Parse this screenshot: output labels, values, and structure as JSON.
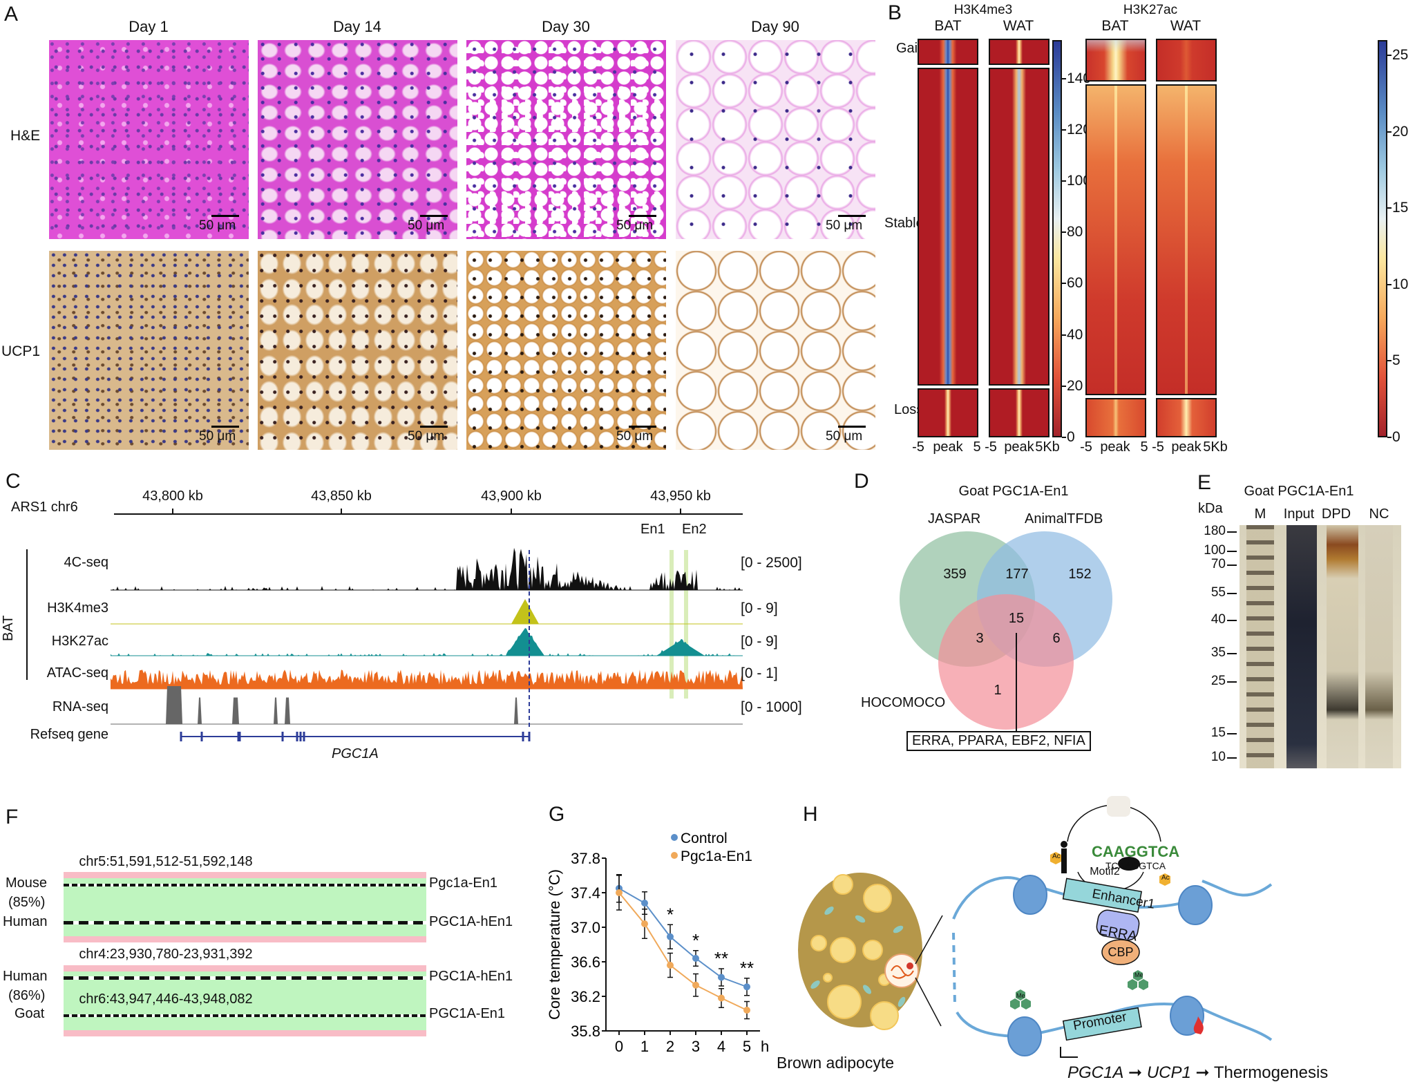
{
  "panel_labels": {
    "a": "A",
    "b": "B",
    "c": "C",
    "d": "D",
    "e": "E",
    "f": "F",
    "g": "G",
    "h": "H"
  },
  "panel_a": {
    "columns": [
      "Day 1",
      "Day 14",
      "Day 30",
      "Day 90"
    ],
    "rows": [
      "H&E",
      "UCP1"
    ],
    "scale_bar": "50 μm"
  },
  "panel_b": {
    "groups": [
      {
        "title": "H3K4me3",
        "samples": [
          "BAT",
          "WAT"
        ],
        "colorbar_ticks": [
          "0",
          "20",
          "40",
          "60",
          "80",
          "100",
          "120",
          "140"
        ],
        "colorbar_max": 155
      },
      {
        "title": "H3K27ac",
        "samples": [
          "BAT",
          "WAT"
        ],
        "colorbar_ticks": [
          "0",
          "5",
          "10",
          "15",
          "20",
          "25"
        ],
        "colorbar_max": 26
      }
    ],
    "row_labels": [
      "Gain",
      "Stable",
      "Loss"
    ],
    "x_ticks_left": [
      "-5",
      "peak",
      "5"
    ],
    "x_ticks_right": [
      "-5",
      "peak",
      "5Kb"
    ]
  },
  "panel_c": {
    "chrom_label": "ARS1 chr6",
    "ticks": [
      "43,800 kb",
      "43,850 kb",
      "43,900 kb",
      "43,950 kb"
    ],
    "enhancers": [
      "En1",
      "En2"
    ],
    "group_label": "BAT",
    "tracks": [
      {
        "name": "4C-seq",
        "range": "[0 - 2500]",
        "color": "#111111"
      },
      {
        "name": "H3K4me3",
        "range": "[0 - 9]",
        "color": "#c3c21a"
      },
      {
        "name": "H3K27ac",
        "range": "[0 - 9]",
        "color": "#138f91"
      },
      {
        "name": "ATAC-seq",
        "range": "[0 - 1]",
        "color": "#ec6a1f"
      },
      {
        "name": "RNA-seq",
        "range": "[0 - 1000]",
        "color": "#666666"
      }
    ],
    "refseq_label": "Refseq gene",
    "gene": "PGC1A"
  },
  "panel_d": {
    "title": "Goat PGC1A-En1",
    "sets": [
      "JASPAR",
      "AnimalTFDB",
      "HOCOMOCO"
    ],
    "counts": {
      "jaspar_only": "359",
      "jaspar_animal": "177",
      "animal_only": "152",
      "all_three": "15",
      "jaspar_hocomoco": "3",
      "animal_hocomoco": "6",
      "hocomoco_only": "1"
    },
    "callout": "ERRA, PPARA, EBF2, NFIA",
    "colors": {
      "jaspar": "#8fbf9f",
      "animal": "#8fbbe3",
      "hocomoco": "#f48f98"
    }
  },
  "panel_e": {
    "title": "Goat PGC1A-En1",
    "unit": "kDa",
    "lanes": [
      "M",
      "Input",
      "DPD",
      "NC"
    ],
    "markers": [
      "180",
      "100",
      "70",
      "55",
      "40",
      "35",
      "25",
      "15",
      "10"
    ]
  },
  "panel_f": {
    "blocks": [
      {
        "coord": "chr5:51,591,512-51,592,148",
        "top_species": "Mouse",
        "identity": "(85%)",
        "bottom_species": "Human",
        "top_name": "Pgc1a-En1",
        "bottom_name": "PGC1A-hEn1"
      },
      {
        "coord": "chr4:23,930,780-23,931,392",
        "top_species": "Human",
        "identity": "(86%)",
        "bottom_species": "Goat",
        "top_name": "PGC1A-hEn1",
        "bottom_name": "PGC1A-En1",
        "inner_coord": "chr6:43,947,446-43,948,082"
      }
    ]
  },
  "chart_data": {
    "type": "line",
    "title": "",
    "xlabel": "h",
    "ylabel": "Core temperature (°C)",
    "x": [
      0,
      1,
      2,
      3,
      4,
      5
    ],
    "x_ticks": [
      "0",
      "1",
      "2",
      "3",
      "4",
      "5"
    ],
    "ylim": [
      35.8,
      37.8
    ],
    "y_ticks": [
      "35.8",
      "36.2",
      "36.6",
      "37.0",
      "37.4",
      "37.8"
    ],
    "legend_position": "top-right",
    "series": [
      {
        "name": "Control",
        "color": "#5b8fc9",
        "values": [
          37.45,
          37.28,
          36.89,
          36.64,
          36.42,
          36.31
        ],
        "errors": [
          0.16,
          0.13,
          0.14,
          0.09,
          0.1,
          0.1
        ]
      },
      {
        "name": "Pgc1a-En1",
        "color": "#f0a95a",
        "values": [
          37.4,
          37.04,
          36.56,
          36.33,
          36.18,
          36.04
        ],
        "errors": [
          0.2,
          0.17,
          0.14,
          0.13,
          0.11,
          0.1
        ]
      }
    ],
    "significance": [
      "",
      "",
      "*",
      "*",
      "**",
      "**"
    ]
  },
  "panel_h": {
    "cell_label": "Brown adipocyte",
    "motif_label": "Motif2",
    "motif_seq": "TCAAGGTCA",
    "enhancer": "Enhancer1",
    "tf": "ERRA",
    "coactivator": "CBP",
    "promoter": "Promoter",
    "acetyl": "Ac",
    "methyl": "Me",
    "pathway": [
      "PGC1A",
      "UCP1",
      "Thermogenesis"
    ]
  }
}
